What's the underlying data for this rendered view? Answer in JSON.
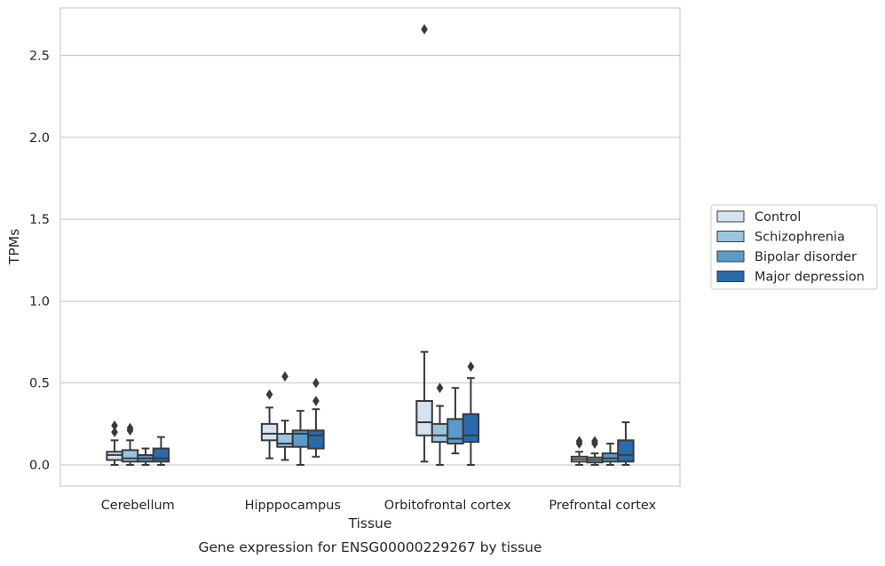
{
  "chart_data": {
    "type": "box",
    "caption": "Gene expression for ENSG00000229267 by tissue",
    "xlabel": "Tissue",
    "ylabel": "TPMs",
    "categories": [
      "Cerebellum",
      "Hipppocampus",
      "Orbitofrontal cortex",
      "Prefrontal cortex"
    ],
    "ylim": [
      -0.13,
      2.79
    ],
    "yticks": [
      0.0,
      0.5,
      1.0,
      1.5,
      2.0,
      2.5
    ],
    "ytick_labels": [
      "0.0",
      "0.5",
      "1.0",
      "1.5",
      "2.0",
      "2.5"
    ],
    "grid": "horizontal",
    "legend_position": "right",
    "series": [
      {
        "name": "Control",
        "color": "#d5e3f1",
        "boxes": [
          {
            "q1": 0.03,
            "median": 0.06,
            "q3": 0.08,
            "whisker_low": 0.0,
            "whisker_high": 0.15,
            "outliers": [
              0.2,
              0.24
            ]
          },
          {
            "q1": 0.15,
            "median": 0.19,
            "q3": 0.25,
            "whisker_low": 0.04,
            "whisker_high": 0.35,
            "outliers": [
              0.43
            ]
          },
          {
            "q1": 0.18,
            "median": 0.26,
            "q3": 0.39,
            "whisker_low": 0.02,
            "whisker_high": 0.69,
            "outliers": [
              2.66
            ]
          },
          {
            "q1": 0.02,
            "median": 0.035,
            "q3": 0.05,
            "whisker_low": 0.0,
            "whisker_high": 0.08,
            "outliers": [
              0.13,
              0.145
            ]
          }
        ]
      },
      {
        "name": "Schizophrenia",
        "color": "#99c5e0",
        "boxes": [
          {
            "q1": 0.02,
            "median": 0.04,
            "q3": 0.09,
            "whisker_low": 0.0,
            "whisker_high": 0.15,
            "outliers": [
              0.21,
              0.225
            ]
          },
          {
            "q1": 0.11,
            "median": 0.13,
            "q3": 0.19,
            "whisker_low": 0.03,
            "whisker_high": 0.27,
            "outliers": [
              0.54
            ]
          },
          {
            "q1": 0.14,
            "median": 0.18,
            "q3": 0.25,
            "whisker_low": 0.0,
            "whisker_high": 0.36,
            "outliers": [
              0.47
            ]
          },
          {
            "q1": 0.015,
            "median": 0.03,
            "q3": 0.045,
            "whisker_low": 0.0,
            "whisker_high": 0.07,
            "outliers": [
              0.13,
              0.145
            ]
          }
        ]
      },
      {
        "name": "Bipolar disorder",
        "color": "#5b9bc9",
        "boxes": [
          {
            "q1": 0.02,
            "median": 0.04,
            "q3": 0.06,
            "whisker_low": 0.0,
            "whisker_high": 0.1,
            "outliers": []
          },
          {
            "q1": 0.11,
            "median": 0.19,
            "q3": 0.21,
            "whisker_low": 0.0,
            "whisker_high": 0.33,
            "outliers": []
          },
          {
            "q1": 0.13,
            "median": 0.16,
            "q3": 0.28,
            "whisker_low": 0.07,
            "whisker_high": 0.47,
            "outliers": []
          },
          {
            "q1": 0.02,
            "median": 0.04,
            "q3": 0.07,
            "whisker_low": 0.0,
            "whisker_high": 0.13,
            "outliers": []
          }
        ]
      },
      {
        "name": "Major depression",
        "color": "#2a6bac",
        "boxes": [
          {
            "q1": 0.02,
            "median": 0.04,
            "q3": 0.1,
            "whisker_low": 0.0,
            "whisker_high": 0.17,
            "outliers": []
          },
          {
            "q1": 0.1,
            "median": 0.18,
            "q3": 0.21,
            "whisker_low": 0.05,
            "whisker_high": 0.34,
            "outliers": [
              0.39,
              0.5
            ]
          },
          {
            "q1": 0.14,
            "median": 0.18,
            "q3": 0.31,
            "whisker_low": 0.0,
            "whisker_high": 0.53,
            "outliers": [
              0.6
            ]
          },
          {
            "q1": 0.02,
            "median": 0.06,
            "q3": 0.15,
            "whisker_low": 0.0,
            "whisker_high": 0.26,
            "outliers": []
          }
        ]
      }
    ]
  }
}
